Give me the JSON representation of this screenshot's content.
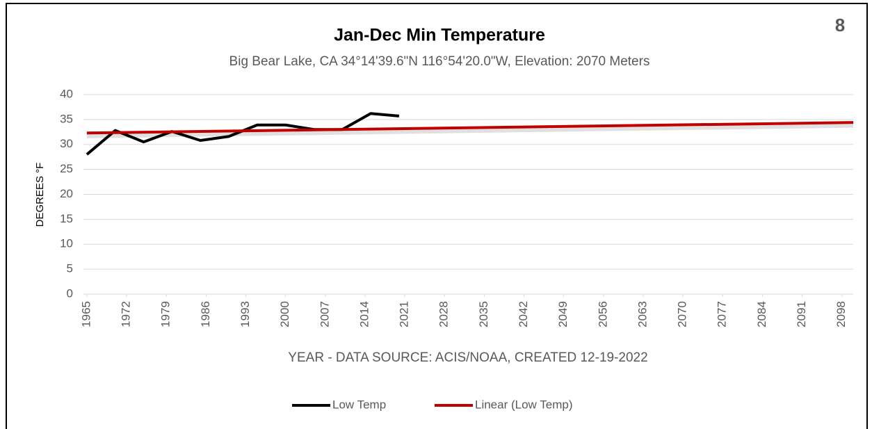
{
  "page_number": "8",
  "chart_data": {
    "type": "line",
    "title": "Jan-Dec Min Temperature",
    "subtitle": "Big Bear Lake, CA 34°14'39.6\"N 116°54'20.0\"W, Elevation: 2070 Meters",
    "y_label": "DEGREES °F",
    "x_label": "YEAR - DATA SOURCE: ACIS/NOAA, CREATED 12-19-2022",
    "series": [
      {
        "name": "Low Temp",
        "color": "#000000",
        "x": [
          1965,
          1970,
          1975,
          1980,
          1985,
          1990,
          1995,
          2000,
          2005,
          2010,
          2015,
          2020
        ],
        "values": [
          28.0,
          32.8,
          30.5,
          32.6,
          30.8,
          31.6,
          33.9,
          33.9,
          33.0,
          33.0,
          36.2,
          35.7
        ]
      },
      {
        "name": "Linear (Low Temp)",
        "color": "#c00000",
        "x": [
          1965,
          2100
        ],
        "values": [
          32.3,
          34.4
        ]
      }
    ],
    "xlim": [
      1964.4,
      2100
    ],
    "xticks": [
      1965,
      1972,
      1979,
      1986,
      1993,
      2000,
      2007,
      2014,
      2021,
      2028,
      2035,
      2042,
      2049,
      2056,
      2063,
      2070,
      2077,
      2084,
      2091,
      2098
    ],
    "ylim": [
      0,
      40
    ],
    "yticks": [
      0,
      5,
      10,
      15,
      20,
      25,
      30,
      35,
      40
    ],
    "grid": true,
    "legend": "bottom"
  }
}
